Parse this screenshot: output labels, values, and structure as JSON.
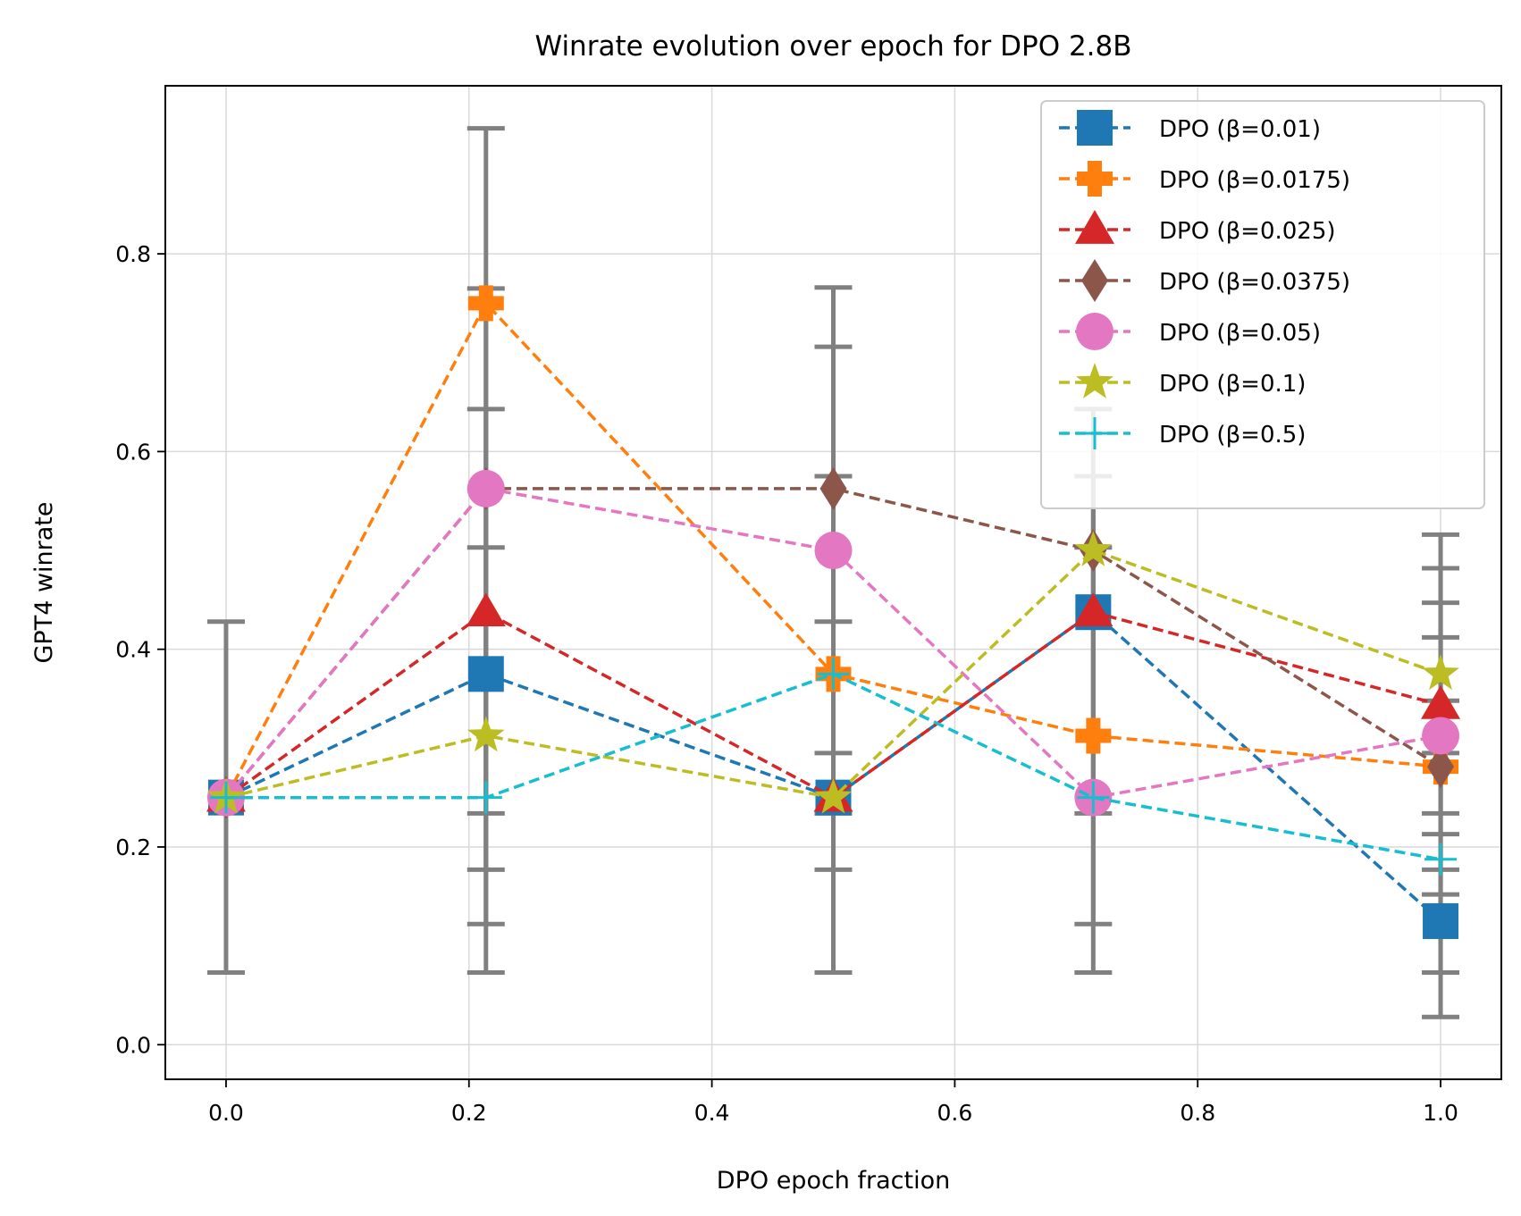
{
  "chart_data": {
    "type": "line",
    "title": "Winrate evolution over epoch for DPO 2.8B",
    "xlabel": "DPO epoch fraction",
    "ylabel": "GPT4 winrate",
    "xlim": [
      -0.05,
      1.05
    ],
    "ylim": [
      -0.035,
      0.97
    ],
    "xticks": [
      0.0,
      0.2,
      0.4,
      0.6,
      0.8,
      1.0
    ],
    "xtick_labels": [
      "0.0",
      "0.2",
      "0.4",
      "0.6",
      "0.8",
      "1.0"
    ],
    "yticks": [
      0.0,
      0.2,
      0.4,
      0.6,
      0.8
    ],
    "ytick_labels": [
      "0.0",
      "0.2",
      "0.4",
      "0.6",
      "0.8"
    ],
    "grid": true,
    "legend_position": "top-right",
    "x": [
      0.0,
      0.214,
      0.5,
      0.714,
      1.0
    ],
    "series": [
      {
        "name": "DPO (β=0.01)",
        "values": [
          0.25,
          0.375,
          0.25,
          0.4375,
          0.125
        ],
        "color": "#1f77b4",
        "marker": "square"
      },
      {
        "name": "DPO (β=0.0175)",
        "values": [
          0.25,
          0.75,
          0.375,
          0.3125,
          0.28125
        ],
        "color": "#ff7f0e",
        "marker": "plus-filled"
      },
      {
        "name": "DPO (β=0.025)",
        "values": [
          0.25,
          0.4375,
          0.25,
          0.4375,
          0.34375
        ],
        "color": "#d62728",
        "marker": "triangle"
      },
      {
        "name": "DPO (β=0.0375)",
        "values": [
          0.25,
          0.5625,
          0.5625,
          0.5,
          0.28125
        ],
        "color": "#8c564b",
        "marker": "diamond"
      },
      {
        "name": "DPO (β=0.05)",
        "values": [
          0.25,
          0.5625,
          0.5,
          0.25,
          0.3125
        ],
        "color": "#e377c2",
        "marker": "circle"
      },
      {
        "name": "DPO (β=0.1)",
        "values": [
          0.25,
          0.3125,
          0.25,
          0.5,
          0.375
        ],
        "color": "#bcbd22",
        "marker": "star"
      },
      {
        "name": "DPO (β=0.5)",
        "values": [
          0.25,
          0.25,
          0.375,
          0.25,
          0.1875
        ],
        "color": "#17becf",
        "marker": "plus-thin"
      }
    ],
    "error_bars": {
      "color": "#808080",
      "values": [
        {
          "x": 0.0,
          "low": 0.073,
          "high": 0.428
        },
        {
          "x": 0.214,
          "low": 0.073,
          "high": 0.927
        },
        {
          "x": 0.214,
          "low": 0.122,
          "high": 0.765
        },
        {
          "x": 0.214,
          "low": 0.177,
          "high": 0.643
        },
        {
          "x": 0.214,
          "low": 0.234,
          "high": 0.503
        },
        {
          "x": 0.5,
          "low": 0.073,
          "high": 0.766
        },
        {
          "x": 0.5,
          "low": 0.177,
          "high": 0.706
        },
        {
          "x": 0.5,
          "low": 0.234,
          "high": 0.575
        },
        {
          "x": 0.5,
          "low": 0.295,
          "high": 0.428
        },
        {
          "x": 0.714,
          "low": 0.073,
          "high": 0.643
        },
        {
          "x": 0.714,
          "low": 0.122,
          "high": 0.575
        },
        {
          "x": 0.714,
          "low": 0.234,
          "high": 0.503
        },
        {
          "x": 1.0,
          "low": 0.028,
          "high": 0.516
        },
        {
          "x": 1.0,
          "low": 0.073,
          "high": 0.482
        },
        {
          "x": 1.0,
          "low": 0.152,
          "high": 0.447
        },
        {
          "x": 1.0,
          "low": 0.177,
          "high": 0.412
        },
        {
          "x": 1.0,
          "low": 0.213,
          "high": 0.348
        },
        {
          "x": 1.0,
          "low": 0.234,
          "high": 0.295
        }
      ]
    }
  }
}
